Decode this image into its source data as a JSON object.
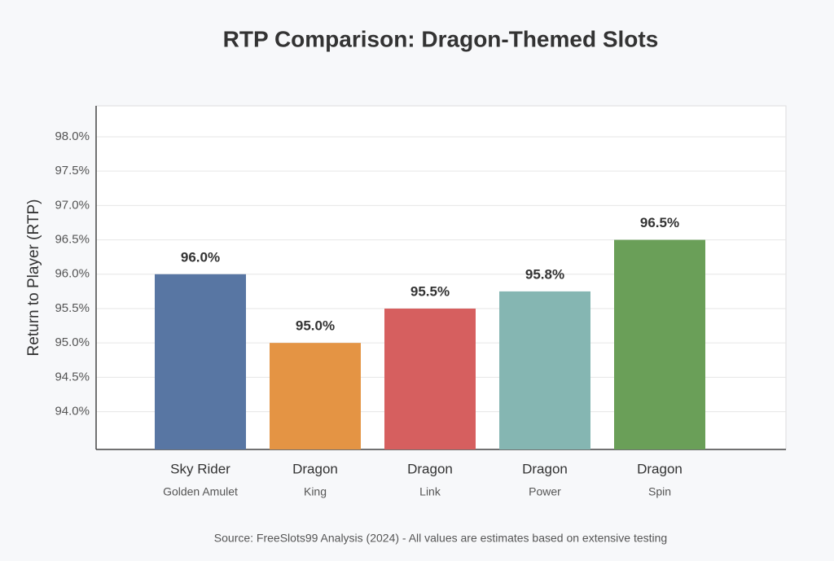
{
  "chart_data": {
    "type": "bar",
    "title": "RTP Comparison: Dragon-Themed Slots",
    "ylabel": "Return to Player (RTP)",
    "source": "Source: FreeSlots99 Analysis (2024) - All values are estimates based on extensive testing",
    "categories": [
      [
        "Sky Rider",
        "Golden Amulet"
      ],
      [
        "Dragon",
        "King"
      ],
      [
        "Dragon",
        "Link"
      ],
      [
        "Dragon",
        "Power"
      ],
      [
        "Dragon",
        "Spin"
      ]
    ],
    "values": [
      96.0,
      95.0,
      95.5,
      95.75,
      96.5
    ],
    "value_labels": [
      "96.0%",
      "95.0%",
      "95.5%",
      "95.8%",
      "96.5%"
    ],
    "colors": [
      "#5876a3",
      "#e49444",
      "#d65f5f",
      "#85b6b2",
      "#6a9f58"
    ],
    "ylim": [
      93.45,
      98.45
    ],
    "yticks": [
      {
        "value": 94.0,
        "label": "94.0%"
      },
      {
        "value": 94.5,
        "label": "94.5%"
      },
      {
        "value": 95.0,
        "label": "95.0%"
      },
      {
        "value": 95.5,
        "label": "95.5%"
      },
      {
        "value": 96.0,
        "label": "96.0%"
      },
      {
        "value": 96.5,
        "label": "96.5%"
      },
      {
        "value": 97.0,
        "label": "97.0%"
      },
      {
        "value": 97.5,
        "label": "97.5%"
      },
      {
        "value": 98.0,
        "label": "98.0%"
      }
    ],
    "grid": true
  }
}
